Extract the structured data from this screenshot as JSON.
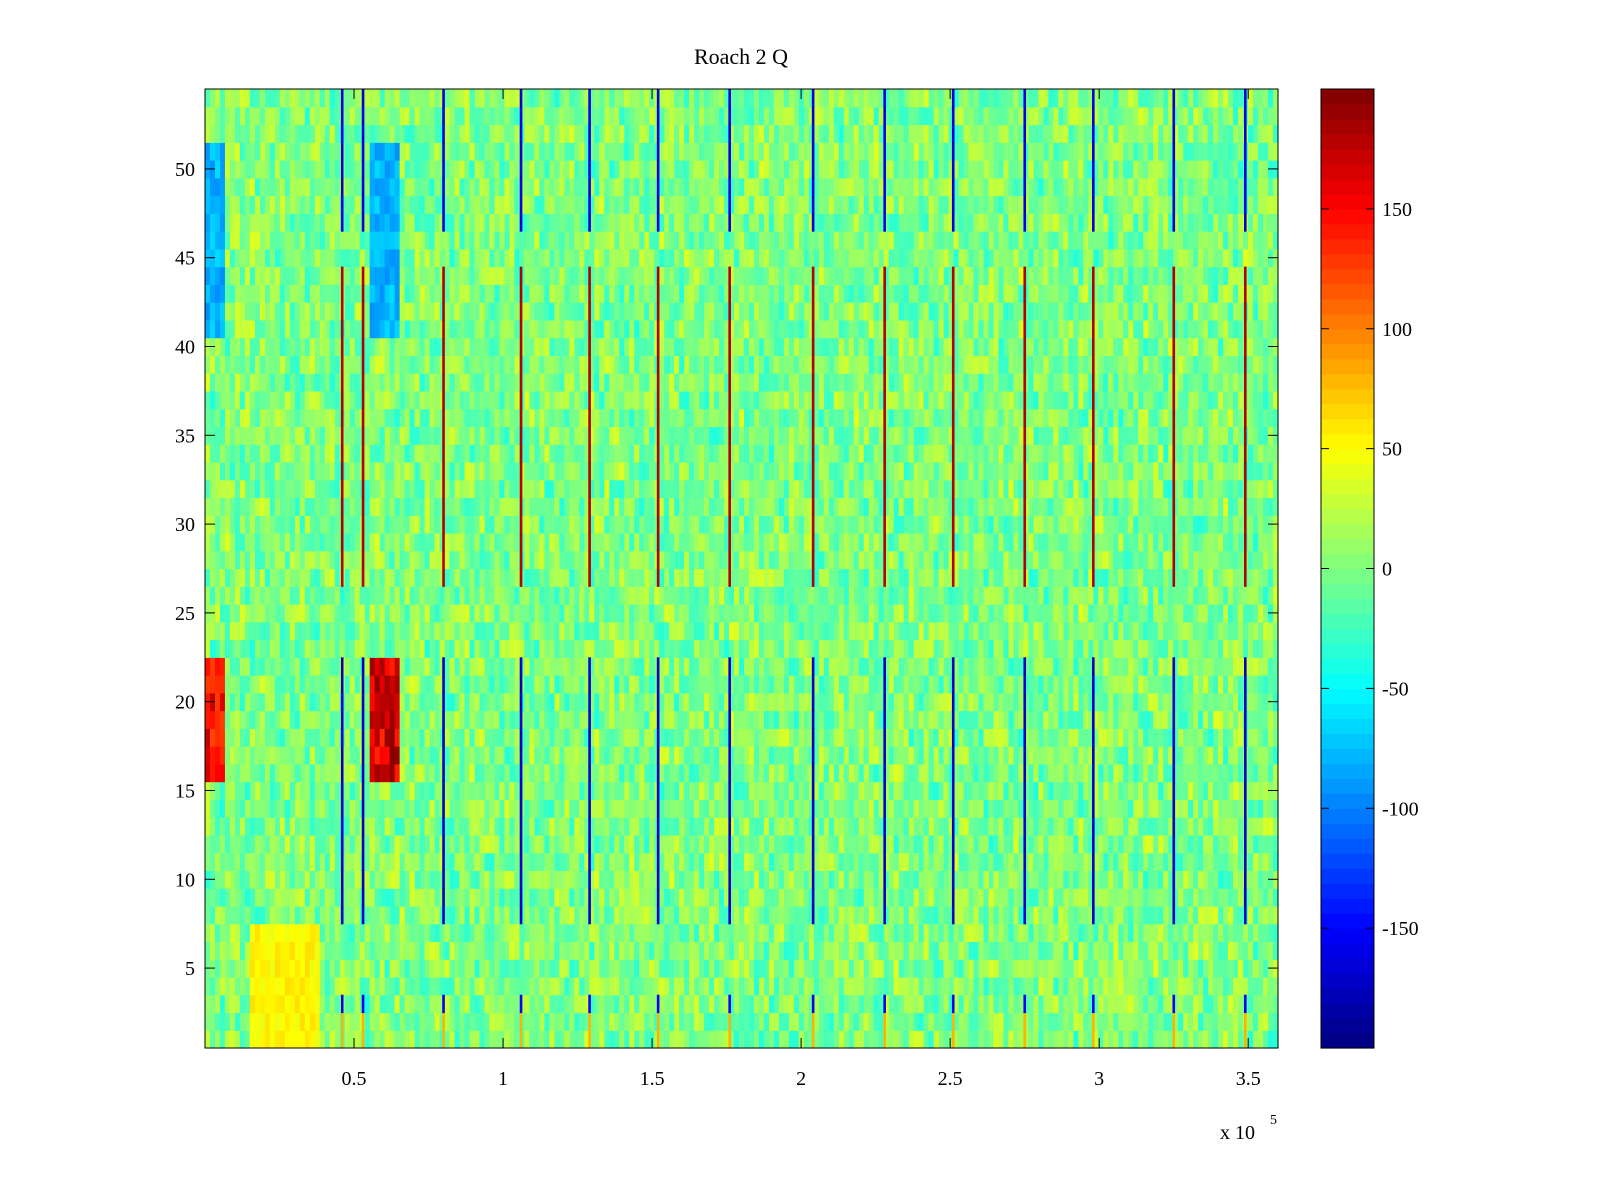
{
  "chart_data": {
    "type": "heatmap",
    "title": "Roach 2 Q",
    "xlabel": "",
    "ylabel": "",
    "x_exponent_label": "x 10",
    "x_exponent_power": "5",
    "xlim": [
      0,
      360000
    ],
    "ylim": [
      0.5,
      54.5
    ],
    "x_ticks": [
      50000,
      100000,
      150000,
      200000,
      250000,
      300000,
      350000
    ],
    "x_tick_labels": [
      "0.5",
      "1",
      "1.5",
      "2",
      "2.5",
      "3",
      "3.5"
    ],
    "y_ticks": [
      5,
      10,
      15,
      20,
      25,
      30,
      35,
      40,
      45,
      50
    ],
    "y_tick_labels": [
      "5",
      "10",
      "15",
      "20",
      "25",
      "30",
      "35",
      "40",
      "45",
      "50"
    ],
    "rows": 54,
    "clim": [
      -200,
      200
    ],
    "colormap": "jet",
    "colorbar_ticks": [
      -150,
      -100,
      -50,
      0,
      50,
      100,
      150
    ],
    "colorbar_tick_labels": [
      "-150",
      "-100",
      "-50",
      "0",
      "50",
      "100",
      "150"
    ],
    "background_value_range": [
      -30,
      30
    ],
    "vertical_stripe_x": [
      46000,
      53000,
      80000,
      106000,
      129000,
      152000,
      176000,
      204000,
      228000,
      251000,
      275000,
      298000,
      325000,
      349000
    ],
    "stripe_pattern": {
      "rows_1_2": "high (~+80)",
      "rows_3": "low (~-150)",
      "rows_8_22": "low (~-170)",
      "rows_27_44": "high (~+180)",
      "rows_47_54": "low (~-160)"
    },
    "low_x_regions": [
      {
        "x_range": [
          0,
          7000
        ],
        "rows": [
          16,
          22
        ],
        "value_approx": 170
      },
      {
        "x_range": [
          55000,
          65000
        ],
        "rows": [
          16,
          22
        ],
        "value_approx": 190
      },
      {
        "x_range": [
          0,
          7000
        ],
        "rows": [
          41,
          51
        ],
        "value_approx": -90
      },
      {
        "x_range": [
          55000,
          65000
        ],
        "rows": [
          41,
          51
        ],
        "value_approx": -90
      },
      {
        "x_range": [
          15000,
          38000
        ],
        "rows": [
          1,
          7
        ],
        "value_approx": 60
      }
    ]
  }
}
